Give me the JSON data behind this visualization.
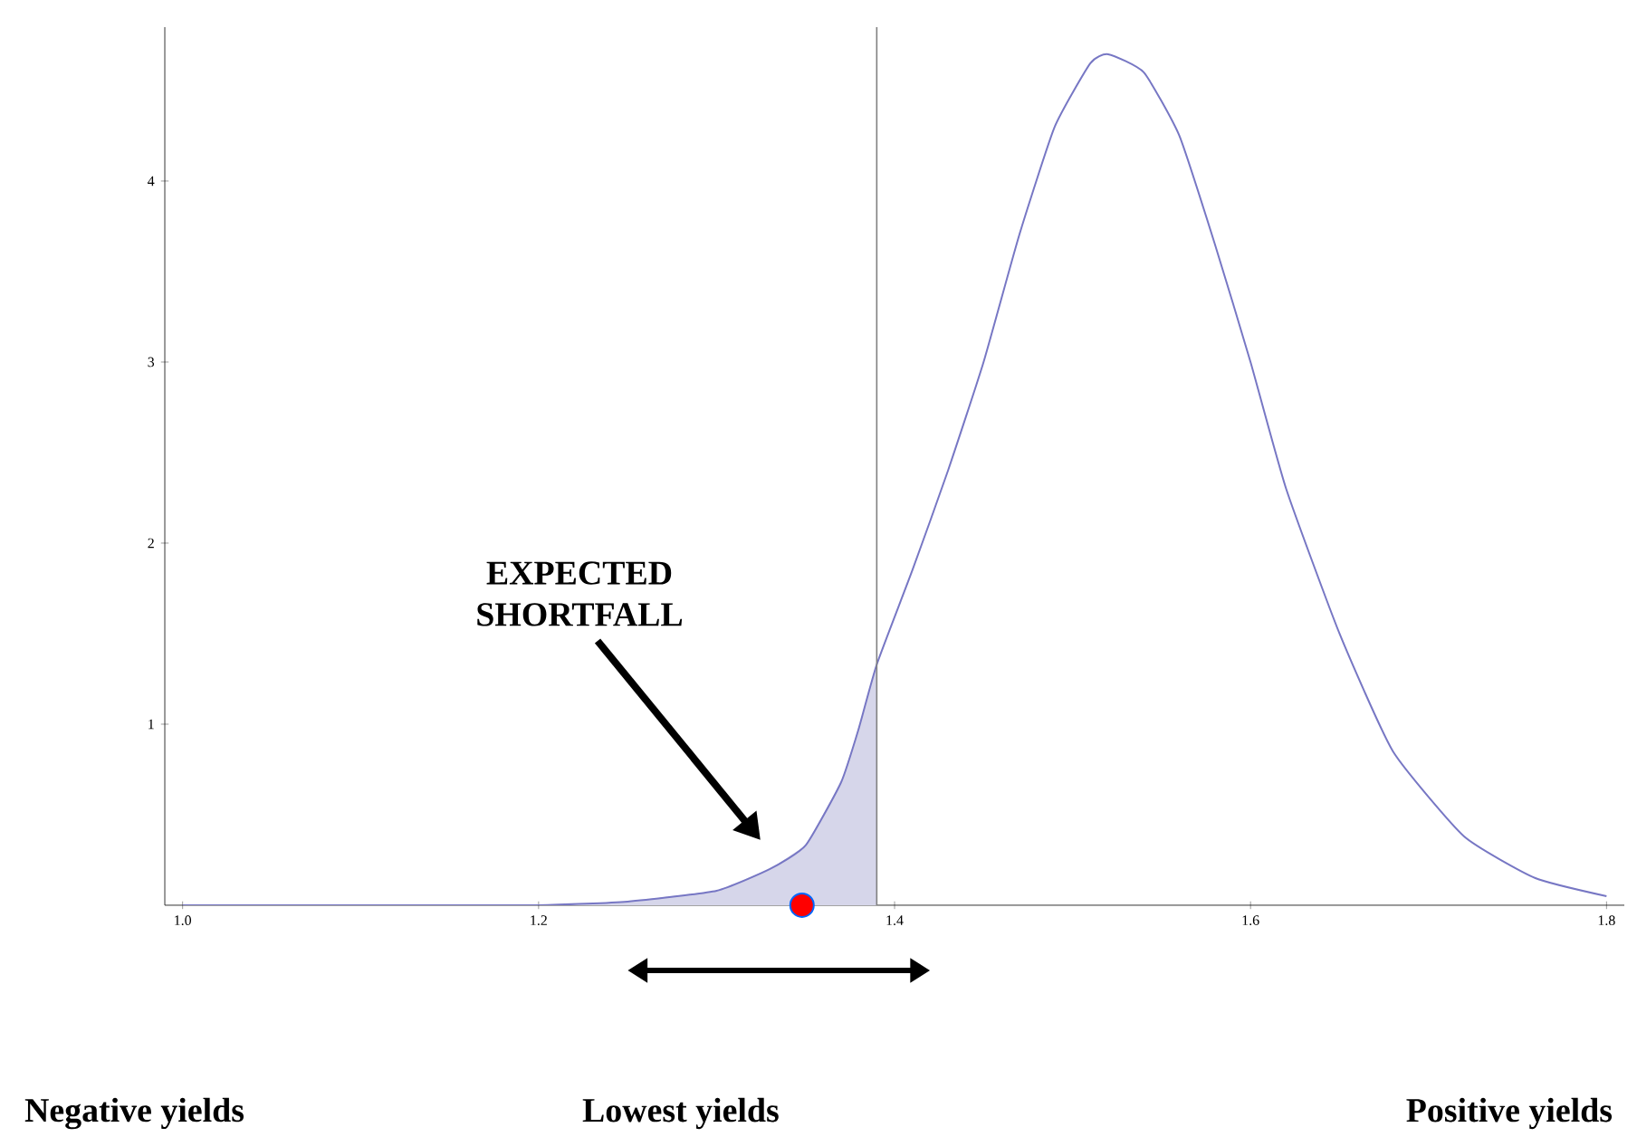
{
  "chart_data": {
    "type": "line",
    "xlim": [
      0.99,
      1.81
    ],
    "ylim": [
      0,
      4.85
    ],
    "xticks": [
      {
        "value": 1.0,
        "label": "1.0"
      },
      1.2,
      1.4,
      1.6,
      1.8
    ],
    "yticks": [
      1,
      2,
      3,
      4
    ],
    "series": [
      {
        "type": "area",
        "color": "#d6d6ea",
        "x": [
          1.0,
          1.1,
          1.2,
          1.25,
          1.3,
          1.33,
          1.35,
          1.37,
          1.38,
          1.39
        ],
        "values": [
          0,
          0,
          0,
          0.02,
          0.08,
          0.2,
          0.33,
          0.68,
          0.98,
          1.33
        ]
      },
      {
        "color": "#7777c4",
        "x": [
          1.0,
          1.1,
          1.2,
          1.25,
          1.3,
          1.33,
          1.35,
          1.37,
          1.38,
          1.39,
          1.41,
          1.43,
          1.45,
          1.47,
          1.49,
          1.51,
          1.52,
          1.54,
          1.56,
          1.58,
          1.6,
          1.62,
          1.65,
          1.68,
          1.72,
          1.76,
          1.8
        ],
        "values": [
          0,
          0,
          0,
          0.02,
          0.08,
          0.2,
          0.33,
          0.68,
          0.98,
          1.33,
          1.85,
          2.4,
          3.0,
          3.7,
          4.3,
          4.65,
          4.7,
          4.6,
          4.25,
          3.65,
          3.0,
          2.3,
          1.5,
          0.85,
          0.38,
          0.15,
          0.05
        ]
      },
      {
        "type": "scatter",
        "color": "#ff0000",
        "marker": "circle",
        "x": [
          1.348
        ],
        "values": [
          0
        ]
      }
    ],
    "ref_lines": [
      {
        "axis": "x",
        "value": 1.39,
        "color": "#808080"
      }
    ],
    "annotations": [
      "EXPECTED SHORTFALL",
      "Negative yields",
      "Lowest    yields",
      "Positive yields"
    ],
    "grid": false
  }
}
